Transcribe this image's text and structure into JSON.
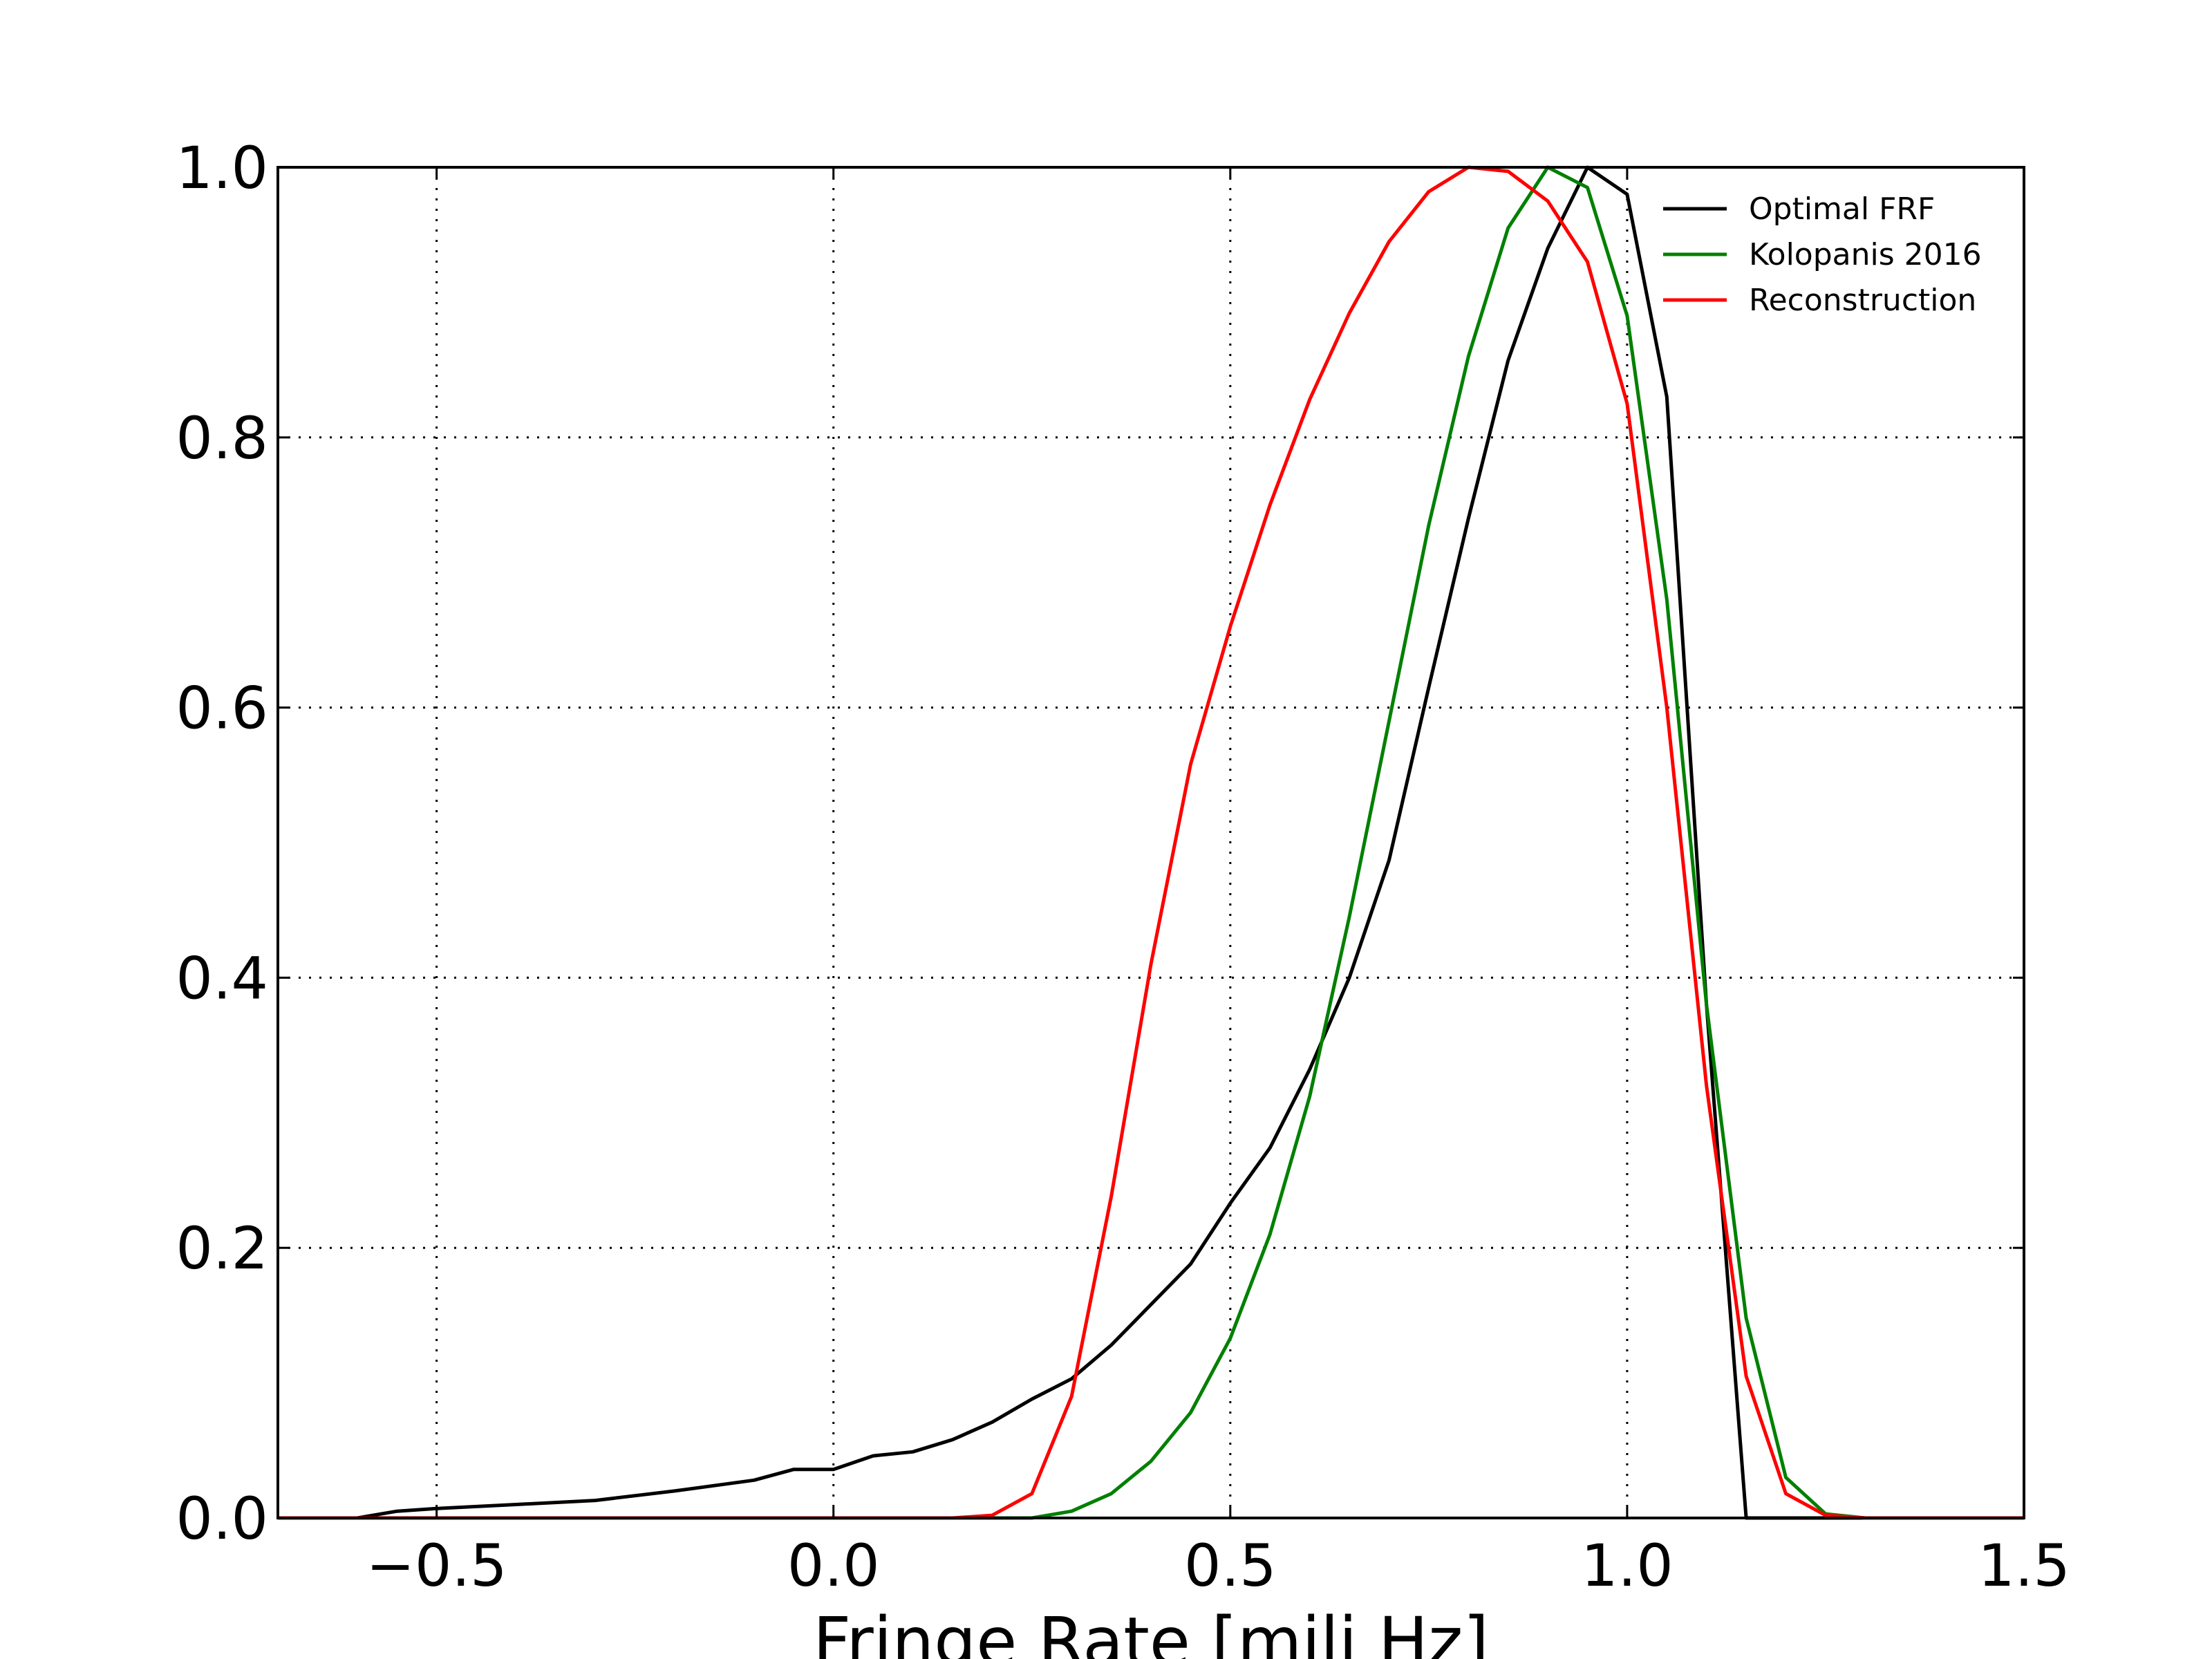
{
  "chart_data": {
    "type": "line",
    "title": "",
    "xlabel": "Fringe Rate [mili Hz]",
    "ylabel": "",
    "xlim": [
      -0.7,
      1.5
    ],
    "ylim": [
      0.0,
      1.0
    ],
    "grid": true,
    "legend_position": "top-right",
    "xticks": [
      -0.5,
      0.0,
      0.5,
      1.0,
      1.5
    ],
    "xtick_labels": [
      "−0.5",
      "0.0",
      "0.5",
      "1.0",
      "1.5"
    ],
    "yticks": [
      0.0,
      0.2,
      0.4,
      0.6,
      0.8,
      1.0
    ],
    "ytick_labels": [
      "0.0",
      "0.2",
      "0.4",
      "0.6",
      "0.8",
      "1.0"
    ],
    "series": [
      {
        "name": "Optimal FRF",
        "color": "#000000",
        "x": [
          -0.7,
          -0.6,
          -0.55,
          -0.5,
          -0.4,
          -0.3,
          -0.2,
          -0.1,
          -0.05,
          0.0,
          0.05,
          0.1,
          0.15,
          0.2,
          0.25,
          0.3,
          0.35,
          0.4,
          0.45,
          0.5,
          0.55,
          0.6,
          0.65,
          0.7,
          0.75,
          0.8,
          0.85,
          0.9,
          0.95,
          1.0,
          1.05,
          1.1,
          1.15,
          1.2,
          1.3,
          1.5
        ],
        "y": [
          0.0,
          0.0,
          0.005,
          0.007,
          0.01,
          0.013,
          0.02,
          0.028,
          0.036,
          0.036,
          0.046,
          0.049,
          0.058,
          0.071,
          0.088,
          0.103,
          0.128,
          0.158,
          0.188,
          0.233,
          0.274,
          0.332,
          0.4,
          0.487,
          0.615,
          0.74,
          0.857,
          0.94,
          1.0,
          0.98,
          0.83,
          0.38,
          0.0,
          0.0,
          0.0,
          0.0
        ]
      },
      {
        "name": "Kolopanis 2016",
        "color": "#008000",
        "x": [
          -0.7,
          0.2,
          0.25,
          0.3,
          0.35,
          0.4,
          0.45,
          0.5,
          0.55,
          0.6,
          0.65,
          0.7,
          0.75,
          0.8,
          0.85,
          0.9,
          0.95,
          1.0,
          1.05,
          1.1,
          1.15,
          1.2,
          1.25,
          1.3,
          1.5
        ],
        "y": [
          0.0,
          0.0,
          0.0,
          0.005,
          0.018,
          0.042,
          0.078,
          0.133,
          0.21,
          0.312,
          0.445,
          0.59,
          0.735,
          0.86,
          0.955,
          1.0,
          0.985,
          0.89,
          0.68,
          0.38,
          0.148,
          0.03,
          0.003,
          0.0,
          0.0
        ]
      },
      {
        "name": "Reconstruction",
        "color": "#ff0000",
        "x": [
          -0.7,
          0.15,
          0.2,
          0.25,
          0.3,
          0.35,
          0.4,
          0.45,
          0.5,
          0.55,
          0.6,
          0.65,
          0.7,
          0.75,
          0.8,
          0.85,
          0.9,
          0.95,
          1.0,
          1.05,
          1.1,
          1.15,
          1.2,
          1.25,
          1.3,
          1.5
        ],
        "y": [
          0.0,
          0.0,
          0.002,
          0.018,
          0.09,
          0.238,
          0.41,
          0.558,
          0.66,
          0.75,
          0.828,
          0.892,
          0.945,
          0.982,
          1.0,
          0.997,
          0.975,
          0.93,
          0.825,
          0.6,
          0.32,
          0.105,
          0.018,
          0.002,
          0.0,
          0.0
        ]
      }
    ]
  }
}
